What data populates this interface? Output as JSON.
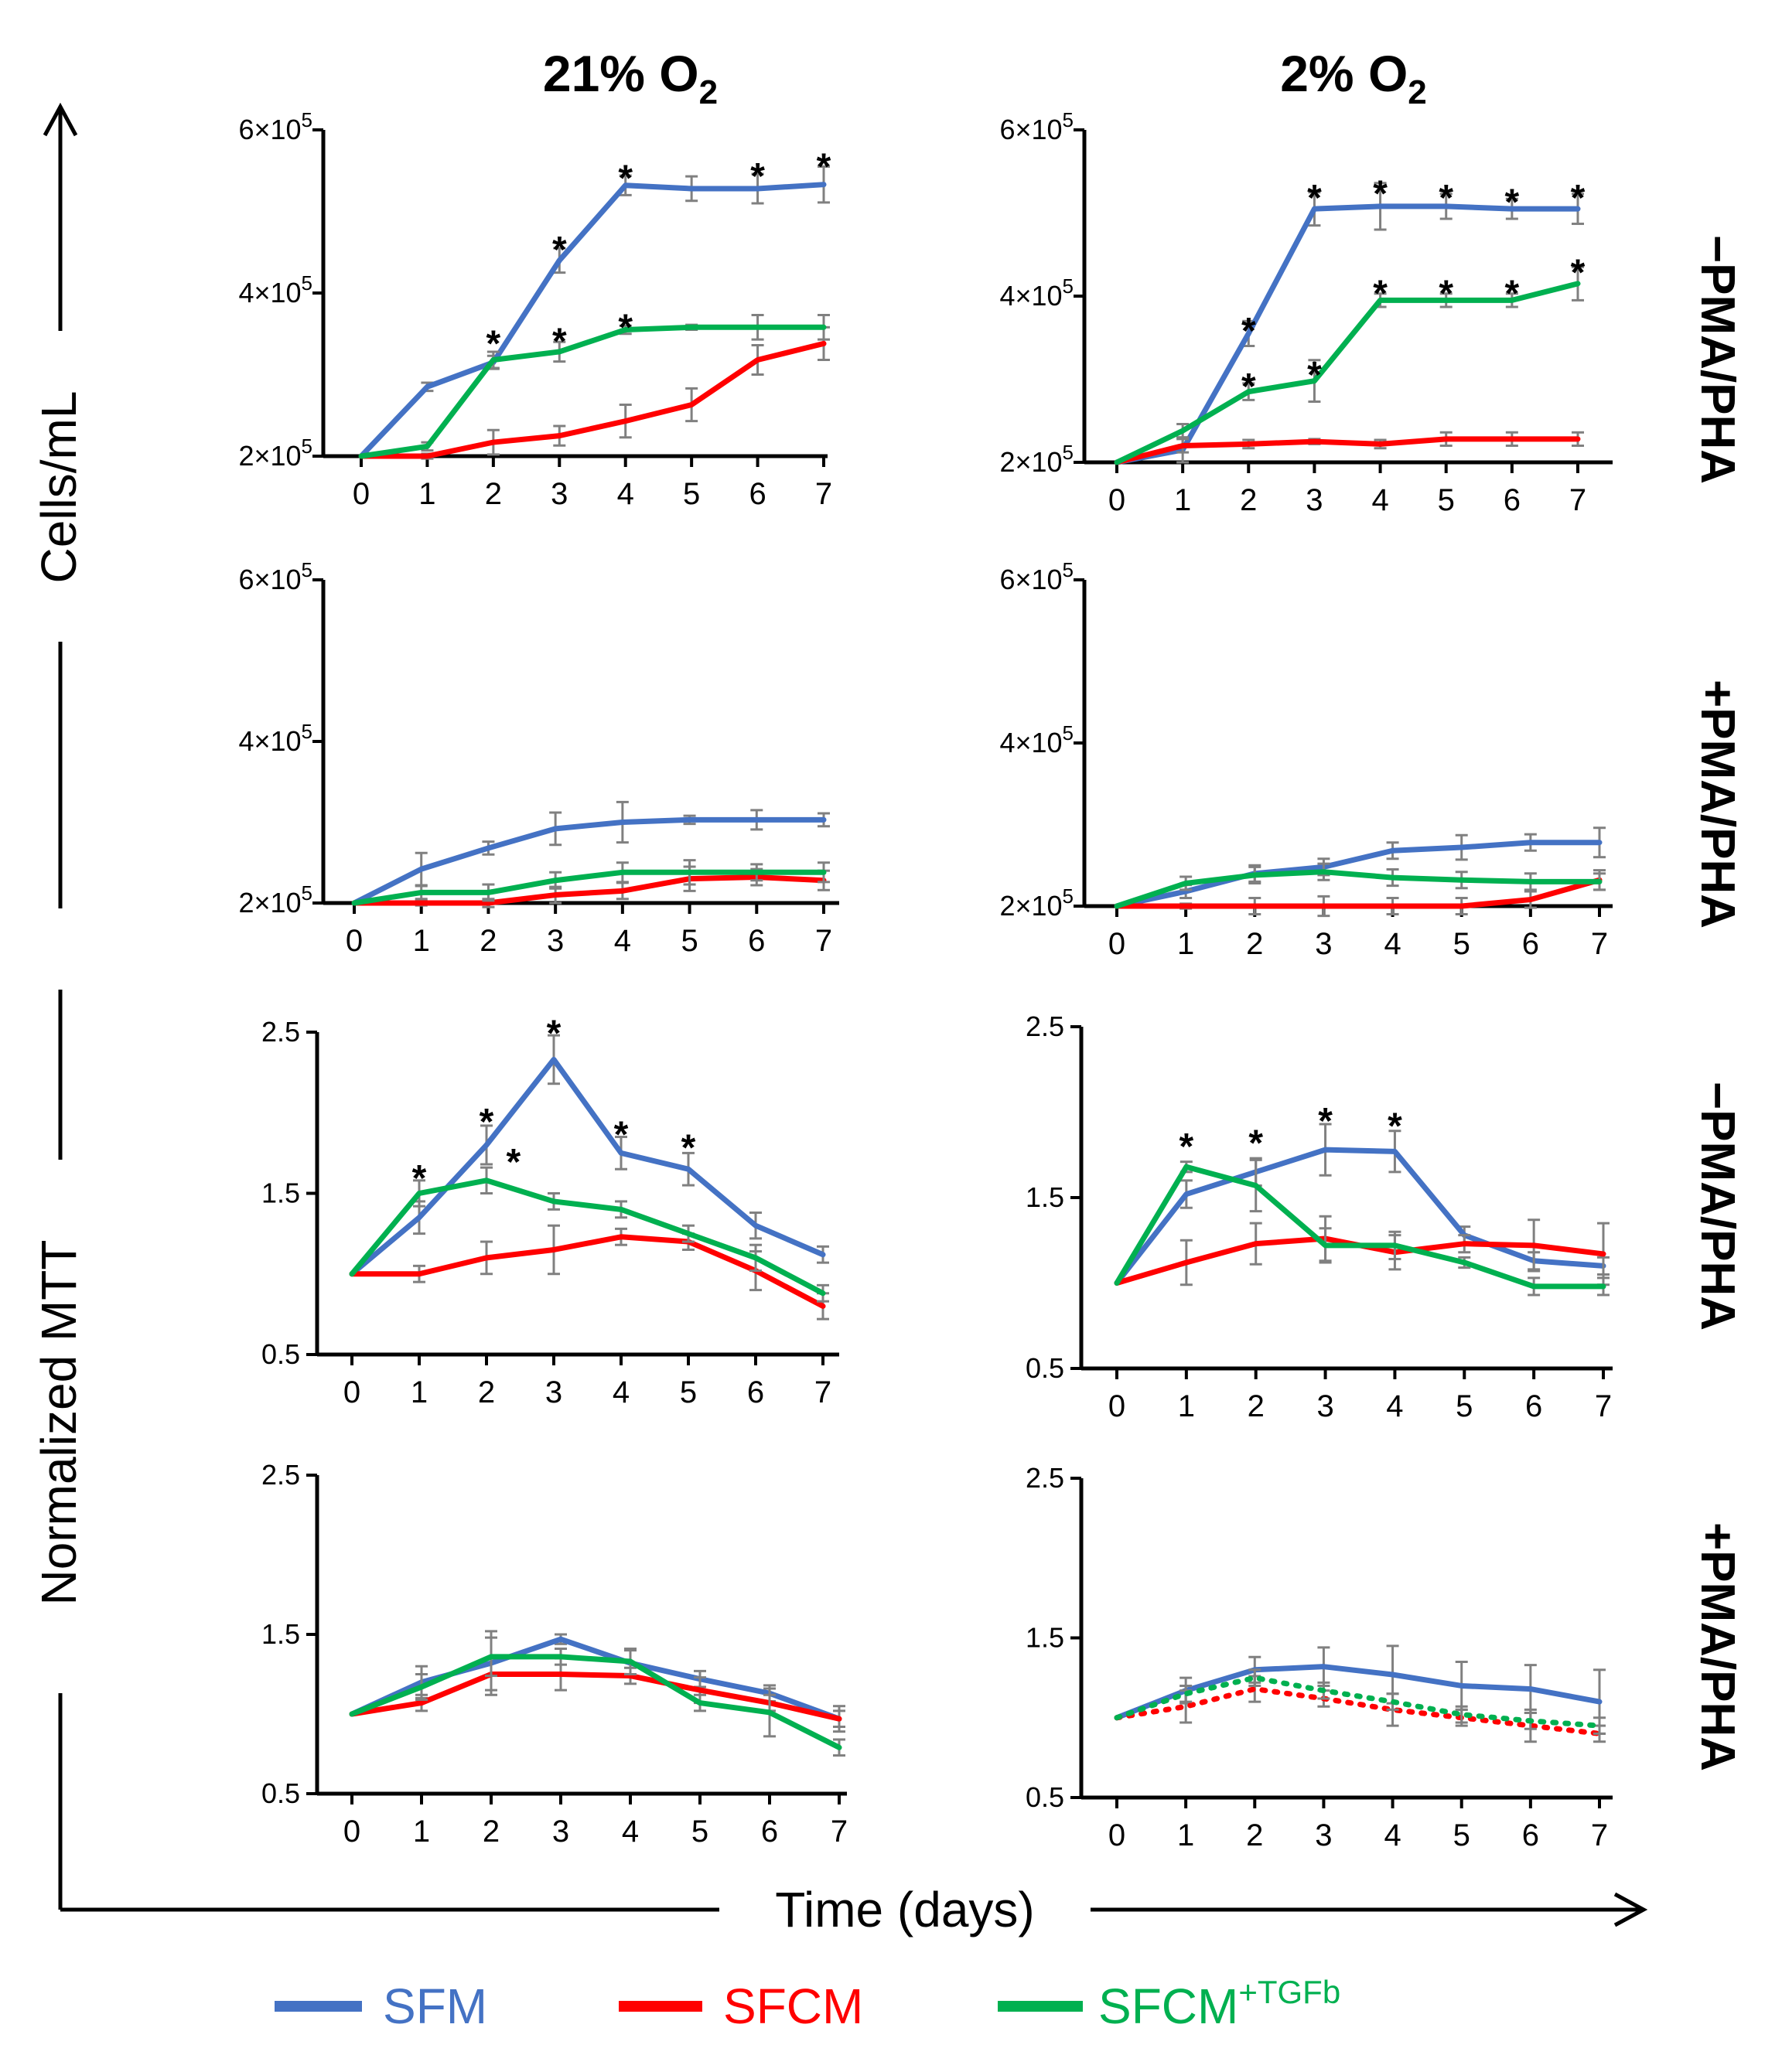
{
  "column_titles": {
    "left": "21% O",
    "left_sub": "2",
    "right": "2% O",
    "right_sub": "2"
  },
  "row_labels": [
    "−PMA/PHA",
    "+PMA/PHA",
    "−PMA/PHA",
    "+PMA/PHA"
  ],
  "axes": {
    "y_top": "Cells/mL",
    "y_bottom": "Normalized MTT",
    "x": "Time (days)"
  },
  "legend": [
    {
      "label": "SFM",
      "color": "#4472C4"
    },
    {
      "label": "SFCM",
      "color": "#FF0000"
    },
    {
      "label": "SFCM",
      "sup": "+TGFb",
      "color": "#00B050"
    }
  ],
  "colors": {
    "SFM": "#4472C4",
    "SFCM": "#FF0000",
    "SFCM_TGFb": "#00B050",
    "error": "#808080"
  },
  "chart_data": [
    {
      "id": "A",
      "type": "line",
      "row": 0,
      "col": 0,
      "x": [
        0,
        1,
        2,
        3,
        4,
        5,
        6,
        7
      ],
      "ylim": [
        200000,
        600000
      ],
      "yticks": [
        {
          "v": 200000,
          "label": "2×10",
          "exp": "5"
        },
        {
          "v": 400000,
          "label": "4×10",
          "exp": "5"
        },
        {
          "v": 600000,
          "label": "6×10",
          "exp": "5"
        }
      ],
      "series": [
        {
          "name": "SFM",
          "values": [
            200000,
            285000,
            315000,
            440000,
            532000,
            528000,
            528000,
            533000
          ],
          "err": [
            0,
            5000,
            8000,
            15000,
            12000,
            15000,
            18000,
            22000
          ]
        },
        {
          "name": "SFCM",
          "values": [
            200000,
            200000,
            217000,
            225000,
            243000,
            263000,
            318000,
            338000
          ],
          "err": [
            0,
            3000,
            15000,
            12000,
            20000,
            20000,
            18000,
            20000
          ]
        },
        {
          "name": "SFCM+TGFb",
          "values": [
            200000,
            212000,
            318000,
            328000,
            355000,
            358000,
            358000,
            358000
          ],
          "err": [
            0,
            5000,
            10000,
            12000,
            5000,
            3000,
            15000,
            15000
          ]
        }
      ],
      "stars": [
        {
          "x": 2,
          "v": 355000
        },
        {
          "x": 3,
          "v": 470000
        },
        {
          "x": 3,
          "v": 358000
        },
        {
          "x": 4,
          "v": 558000
        },
        {
          "x": 4,
          "v": 375000
        },
        {
          "x": 6,
          "v": 560000
        },
        {
          "x": 7,
          "v": 572000
        }
      ]
    },
    {
      "id": "B",
      "type": "line",
      "row": 0,
      "col": 1,
      "x": [
        0,
        1,
        2,
        3,
        4,
        5,
        6,
        7
      ],
      "ylim": [
        200000,
        600000
      ],
      "yticks": [
        {
          "v": 200000,
          "label": "2×10",
          "exp": "5"
        },
        {
          "v": 400000,
          "label": "4×10",
          "exp": "5"
        },
        {
          "v": 600000,
          "label": "6×10",
          "exp": "5"
        }
      ],
      "series": [
        {
          "name": "SFM",
          "values": [
            200000,
            215000,
            355000,
            505000,
            508000,
            508000,
            505000,
            505000
          ],
          "err": [
            0,
            15000,
            15000,
            20000,
            28000,
            15000,
            12000,
            18000
          ]
        },
        {
          "name": "SFCM",
          "values": [
            200000,
            220000,
            222000,
            225000,
            222000,
            228000,
            228000,
            228000
          ],
          "err": [
            0,
            8000,
            5000,
            3000,
            5000,
            8000,
            8000,
            8000
          ]
        },
        {
          "name": "SFCM+TGFb",
          "values": [
            200000,
            238000,
            285000,
            298000,
            395000,
            395000,
            395000,
            415000
          ],
          "err": [
            0,
            8000,
            10000,
            25000,
            8000,
            8000,
            8000,
            20000
          ]
        }
      ],
      "stars": [
        {
          "x": 2,
          "v": 375000
        },
        {
          "x": 2,
          "v": 308000
        },
        {
          "x": 3,
          "v": 535000
        },
        {
          "x": 3,
          "v": 322000
        },
        {
          "x": 4,
          "v": 540000
        },
        {
          "x": 4,
          "v": 420000
        },
        {
          "x": 5,
          "v": 535000
        },
        {
          "x": 5,
          "v": 420000
        },
        {
          "x": 6,
          "v": 530000
        },
        {
          "x": 6,
          "v": 420000
        },
        {
          "x": 7,
          "v": 535000
        },
        {
          "x": 7,
          "v": 445000
        }
      ]
    },
    {
      "id": "C",
      "type": "line",
      "row": 1,
      "col": 0,
      "x": [
        0,
        1,
        2,
        3,
        4,
        5,
        6,
        7
      ],
      "ylim": [
        200000,
        600000
      ],
      "yticks": [
        {
          "v": 200000,
          "label": "2×10",
          "exp": "5"
        },
        {
          "v": 400000,
          "label": "4×10",
          "exp": "5"
        },
        {
          "v": 600000,
          "label": "6×10",
          "exp": "5"
        }
      ],
      "series": [
        {
          "name": "SFM",
          "values": [
            200000,
            242000,
            268000,
            292000,
            300000,
            303000,
            303000,
            303000
          ],
          "err": [
            0,
            20000,
            8000,
            20000,
            25000,
            5000,
            12000,
            8000
          ]
        },
        {
          "name": "SFCM",
          "values": [
            200000,
            200000,
            200000,
            210000,
            215000,
            230000,
            232000,
            228000
          ],
          "err": [
            0,
            3000,
            5000,
            10000,
            10000,
            15000,
            10000,
            12000
          ]
        },
        {
          "name": "SFCM+TGFb",
          "values": [
            200000,
            213000,
            213000,
            228000,
            238000,
            238000,
            238000,
            238000
          ],
          "err": [
            0,
            8000,
            10000,
            10000,
            12000,
            15000,
            10000,
            12000
          ]
        }
      ],
      "stars": []
    },
    {
      "id": "D",
      "type": "line",
      "row": 1,
      "col": 1,
      "x": [
        0,
        1,
        2,
        3,
        4,
        5,
        6,
        7
      ],
      "ylim": [
        200000,
        600000
      ],
      "yticks": [
        {
          "v": 200000,
          "label": "2×10",
          "exp": "5"
        },
        {
          "v": 400000,
          "label": "4×10",
          "exp": "5"
        },
        {
          "v": 600000,
          "label": "6×10",
          "exp": "5"
        }
      ],
      "series": [
        {
          "name": "SFM",
          "values": [
            200000,
            218000,
            240000,
            248000,
            268000,
            272000,
            278000,
            278000
          ],
          "err": [
            0,
            8000,
            10000,
            10000,
            10000,
            15000,
            10000,
            18000
          ]
        },
        {
          "name": "SFCM",
          "values": [
            200000,
            200000,
            200000,
            200000,
            200000,
            200000,
            208000,
            232000
          ],
          "err": [
            0,
            3000,
            10000,
            12000,
            10000,
            10000,
            10000,
            12000
          ]
        },
        {
          "name": "SFCM+TGFb",
          "values": [
            200000,
            228000,
            238000,
            242000,
            235000,
            232000,
            230000,
            230000
          ],
          "err": [
            0,
            8000,
            10000,
            10000,
            10000,
            10000,
            10000,
            10000
          ]
        }
      ],
      "stars": []
    },
    {
      "id": "E",
      "type": "line",
      "row": 2,
      "col": 0,
      "x": [
        0,
        1,
        2,
        3,
        4,
        5,
        6,
        7
      ],
      "ylim": [
        0.5,
        2.5
      ],
      "yticks": [
        {
          "v": 0.5,
          "label": "0.5"
        },
        {
          "v": 1.5,
          "label": "1.5"
        },
        {
          "v": 2.5,
          "label": "2.5"
        }
      ],
      "series": [
        {
          "name": "SFM",
          "values": [
            1.0,
            1.35,
            1.8,
            2.33,
            1.75,
            1.65,
            1.3,
            1.12
          ],
          "err": [
            0,
            0.1,
            0.12,
            0.15,
            0.1,
            0.1,
            0.08,
            0.05
          ]
        },
        {
          "name": "SFCM",
          "values": [
            1.0,
            1.0,
            1.1,
            1.15,
            1.23,
            1.2,
            1.02,
            0.8
          ],
          "err": [
            0,
            0.05,
            0.1,
            0.15,
            0.05,
            0.05,
            0.12,
            0.08
          ]
        },
        {
          "name": "SFCM+TGFb",
          "values": [
            1.0,
            1.5,
            1.58,
            1.45,
            1.4,
            1.25,
            1.1,
            0.88
          ],
          "err": [
            0,
            0.08,
            0.08,
            0.05,
            0.05,
            0.05,
            0.08,
            0.05
          ]
        }
      ],
      "stars": [
        {
          "x": 1,
          "v": 1.68
        },
        {
          "x": 2,
          "v": 2.03
        },
        {
          "x": 2.4,
          "v": 1.78
        },
        {
          "x": 3,
          "v": 2.58
        },
        {
          "x": 4,
          "v": 1.95
        },
        {
          "x": 5,
          "v": 1.87
        }
      ]
    },
    {
      "id": "F",
      "type": "line",
      "row": 2,
      "col": 1,
      "x": [
        0,
        1,
        2,
        3,
        4,
        5,
        6,
        7
      ],
      "ylim": [
        0.5,
        2.5
      ],
      "yticks": [
        {
          "v": 0.5,
          "label": "0.5"
        },
        {
          "v": 1.5,
          "label": "1.5"
        },
        {
          "v": 2.5,
          "label": "2.5"
        }
      ],
      "series": [
        {
          "name": "SFM",
          "values": [
            1.0,
            1.52,
            1.65,
            1.78,
            1.77,
            1.28,
            1.13,
            1.1
          ],
          "err": [
            0,
            0.08,
            0.08,
            0.15,
            0.12,
            0.05,
            0.05,
            0.05
          ]
        },
        {
          "name": "SFCM",
          "values": [
            1.0,
            1.12,
            1.23,
            1.26,
            1.18,
            1.23,
            1.22,
            1.17
          ],
          "err": [
            0,
            0.13,
            0.12,
            0.13,
            0.1,
            0.05,
            0.15,
            0.18
          ]
        },
        {
          "name": "SFCM+TGFb",
          "values": [
            1.0,
            1.68,
            1.57,
            1.22,
            1.22,
            1.12,
            0.98,
            0.98
          ],
          "err": [
            0,
            0.03,
            0.15,
            0.1,
            0.08,
            0.03,
            0.05,
            0.05
          ]
        }
      ],
      "stars": [
        {
          "x": 1,
          "v": 1.88
        },
        {
          "x": 2,
          "v": 1.9
        },
        {
          "x": 3,
          "v": 2.03
        },
        {
          "x": 4,
          "v": 2.0
        }
      ]
    },
    {
      "id": "G",
      "type": "line",
      "row": 3,
      "col": 0,
      "x": [
        0,
        1,
        2,
        3,
        4,
        5,
        6,
        7
      ],
      "ylim": [
        0.5,
        2.5
      ],
      "yticks": [
        {
          "v": 0.5,
          "label": "0.5"
        },
        {
          "v": 1.5,
          "label": "1.5"
        },
        {
          "v": 2.5,
          "label": "2.5"
        }
      ],
      "series": [
        {
          "name": "SFM",
          "values": [
            1.0,
            1.2,
            1.32,
            1.47,
            1.32,
            1.22,
            1.13,
            0.97
          ],
          "err": [
            0,
            0.1,
            0.2,
            0.03,
            0.08,
            0.05,
            0.05,
            0.08
          ]
        },
        {
          "name": "SFCM",
          "values": [
            1.0,
            1.07,
            1.25,
            1.25,
            1.24,
            1.15,
            1.07,
            0.97
          ],
          "err": [
            0,
            0.05,
            0.1,
            0.1,
            0.05,
            0.08,
            0.05,
            0.05
          ]
        },
        {
          "name": "SFCM+TGFb",
          "values": [
            1.0,
            1.17,
            1.36,
            1.36,
            1.33,
            1.07,
            1.01,
            0.79
          ],
          "err": [
            0,
            0.08,
            0.12,
            0.05,
            0.08,
            0.05,
            0.15,
            0.05
          ]
        }
      ],
      "stars": []
    },
    {
      "id": "H",
      "type": "line",
      "row": 3,
      "col": 1,
      "x": [
        0,
        1,
        2,
        3,
        4,
        5,
        6,
        7
      ],
      "ylim": [
        0.5,
        2.5
      ],
      "yticks": [
        {
          "v": 0.5,
          "label": "0.5"
        },
        {
          "v": 1.5,
          "label": "1.5"
        },
        {
          "v": 2.5,
          "label": "2.5"
        }
      ],
      "series": [
        {
          "name": "SFM",
          "values": [
            1.0,
            1.17,
            1.3,
            1.32,
            1.27,
            1.2,
            1.18,
            1.1
          ],
          "err": [
            0,
            0.08,
            0.08,
            0.12,
            0.18,
            0.15,
            0.15,
            0.2
          ]
        },
        {
          "name": "SFCM",
          "values": [
            1.0,
            1.07,
            1.18,
            1.12,
            1.05,
            1.0,
            0.95,
            0.9
          ],
          "err": [
            0,
            0.1,
            0.08,
            0.05,
            0.1,
            0.05,
            0.1,
            0.05
          ],
          "dashed": true
        },
        {
          "name": "SFCM+TGFb",
          "values": [
            1.0,
            1.15,
            1.25,
            1.17,
            1.1,
            1.02,
            0.98,
            0.95
          ],
          "err": [
            0,
            0.05,
            0.05,
            0.05,
            0.05,
            0.05,
            0.05,
            0.05
          ],
          "dashed": true
        }
      ],
      "stars": []
    }
  ]
}
